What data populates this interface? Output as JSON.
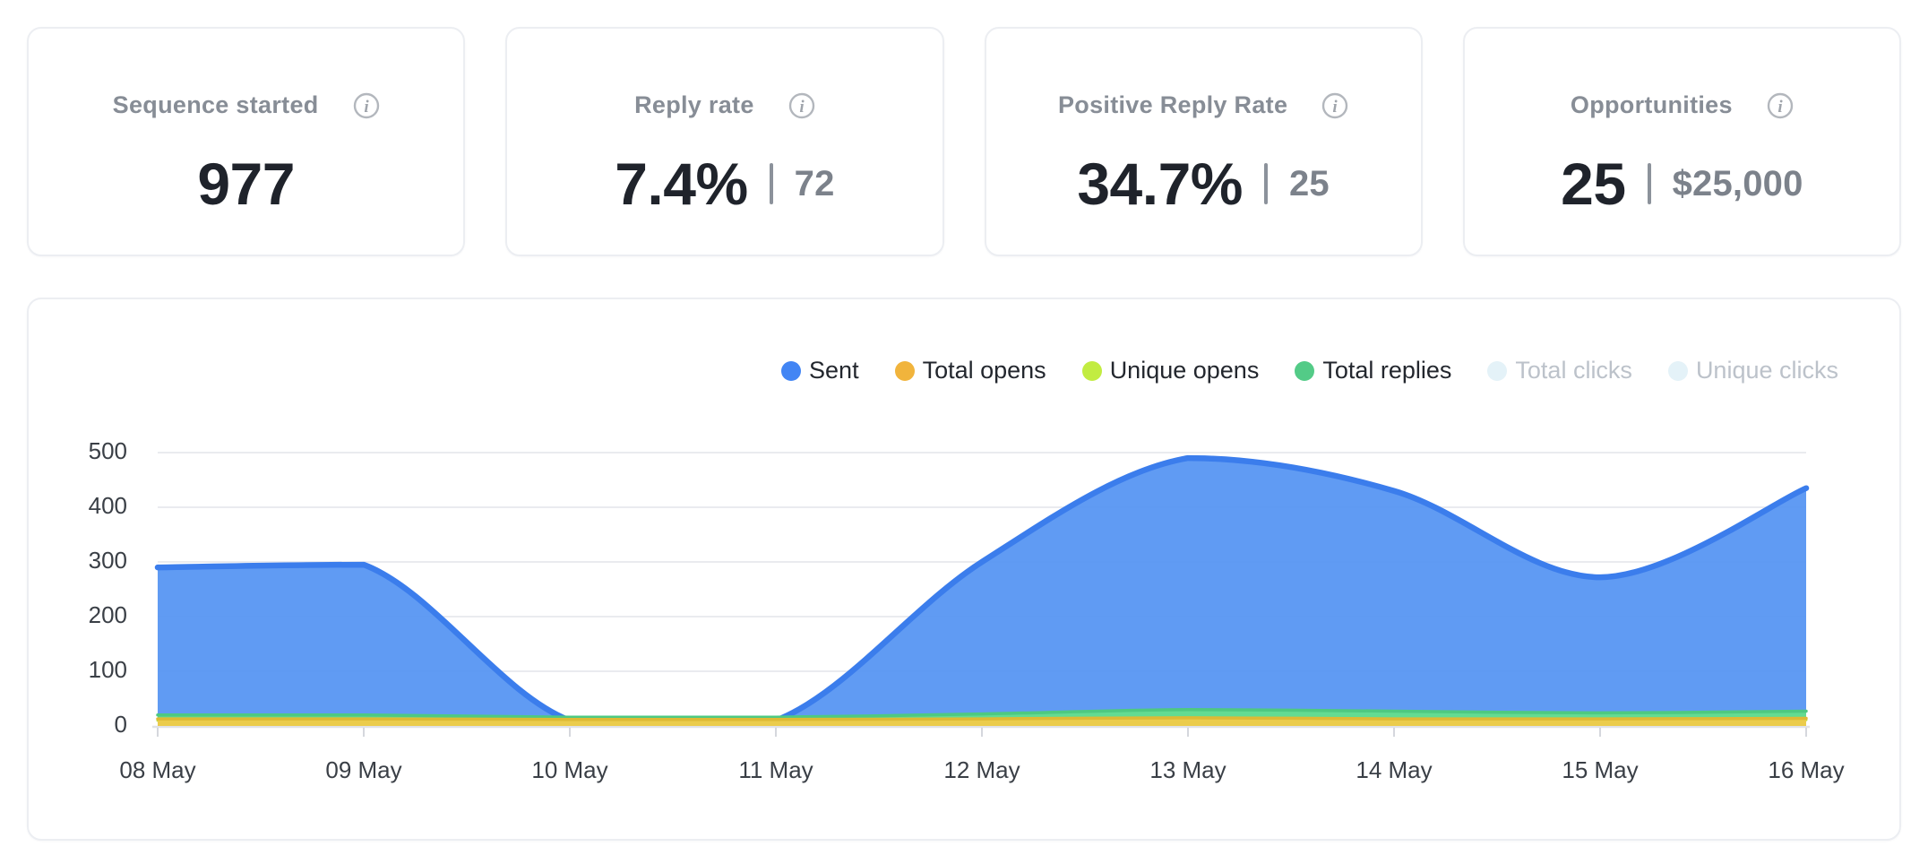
{
  "cards": [
    {
      "title": "Sequence started",
      "primary": "977"
    },
    {
      "title": "Reply rate",
      "primary": "7.4%",
      "secondary": "72"
    },
    {
      "title": "Positive Reply Rate",
      "primary": "34.7%",
      "secondary": "25"
    },
    {
      "title": "Opportunities",
      "primary": "25",
      "secondary": "$25,000"
    }
  ],
  "info_icon_glyph": "i",
  "chart_data": {
    "type": "area",
    "title": "",
    "xlabel": "",
    "ylabel": "",
    "categories": [
      "08 May",
      "09 May",
      "10 May",
      "11 May",
      "12 May",
      "13 May",
      "14 May",
      "15 May",
      "16 May"
    ],
    "ylim": [
      0,
      500
    ],
    "yticks": [
      0,
      100,
      200,
      300,
      400,
      500
    ],
    "grid": true,
    "legend_position": "top-right",
    "series": [
      {
        "name": "Sent",
        "active": true,
        "dot_color": "#4285f4",
        "fill": "#5493f2",
        "stroke": "#3b7dec",
        "stroke_width": 6.5,
        "fill_opacity": 0.93,
        "values": [
          290,
          295,
          10,
          10,
          300,
          490,
          430,
          272,
          435
        ]
      },
      {
        "name": "Total opens",
        "active": true,
        "dot_color": "#f1b43c",
        "fill": "#ebcc4c",
        "stroke": "#ddba35",
        "stroke_width": 3.5,
        "fill_opacity": 1,
        "values": [
          13,
          13,
          12,
          12,
          13,
          15,
          13,
          13,
          14
        ]
      },
      {
        "name": "Unique opens",
        "active": true,
        "dot_color": "#c2ec41",
        "fill": "#c9e94f",
        "stroke": "#bfe23e",
        "stroke_width": 3,
        "fill_opacity": 1,
        "values": [
          10,
          10,
          8,
          8,
          10,
          12,
          11,
          10,
          11
        ]
      },
      {
        "name": "Total replies",
        "active": true,
        "dot_color": "#53cb87",
        "fill": "#63db92",
        "stroke": "#4ec981",
        "stroke_width": 3.5,
        "fill_opacity": 1,
        "values": [
          20,
          20,
          16,
          16,
          22,
          30,
          27,
          24,
          27
        ]
      },
      {
        "name": "Total clicks",
        "active": false,
        "dot_color": "#e4f2f8",
        "fill": "#e4f2f8",
        "stroke": "#e4f2f8",
        "stroke_width": 0,
        "fill_opacity": 1,
        "values": []
      },
      {
        "name": "Unique clicks",
        "active": false,
        "dot_color": "#e4f2f8",
        "fill": "#e4f2f8",
        "stroke": "#e4f2f8",
        "stroke_width": 0,
        "fill_opacity": 1,
        "values": []
      }
    ],
    "draw_order": [
      "Sent",
      "Total replies",
      "Unique opens",
      "Total opens"
    ],
    "colors": {
      "gridline": "#eaebef",
      "axis_line": "#e0e2e7",
      "tick": "#d5d7dd",
      "axis_text": "#3a3f46"
    }
  }
}
